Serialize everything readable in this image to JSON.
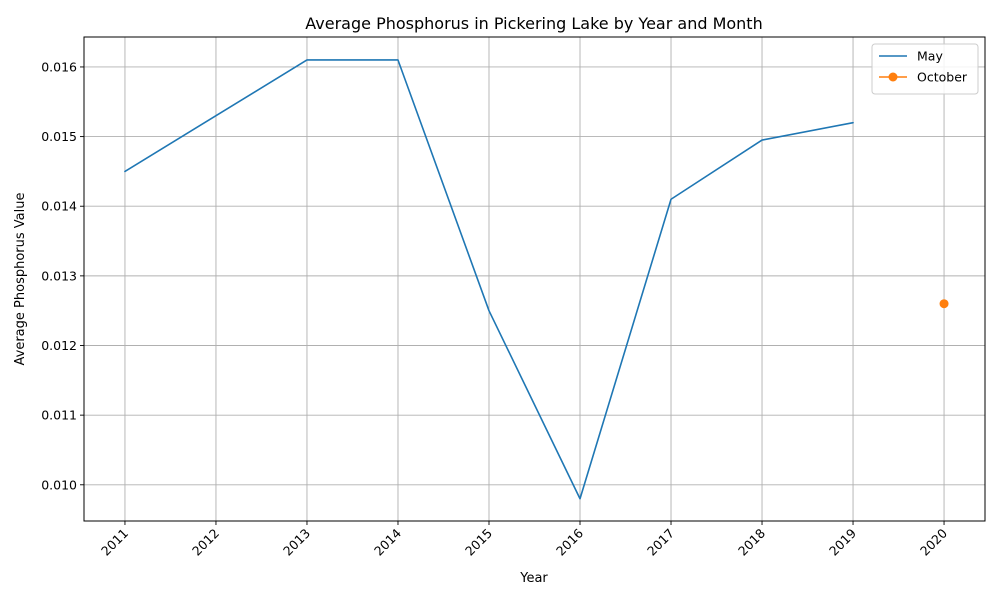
{
  "chart_data": {
    "type": "line",
    "title": "Average Phosphorus in Pickering Lake by Year and Month",
    "xlabel": "Year",
    "ylabel": "Average Phosphorus Value",
    "x_ticks": [
      "2011",
      "2012",
      "2013",
      "2014",
      "2015",
      "2016",
      "2017",
      "2018",
      "2019",
      "2020"
    ],
    "y_ticks": [
      "0.010",
      "0.011",
      "0.012",
      "0.013",
      "0.014",
      "0.015",
      "0.016"
    ],
    "xlim": [
      2010.55,
      2020.45
    ],
    "ylim": [
      0.00948,
      0.01643
    ],
    "grid": true,
    "legend_position": "top-right",
    "series": [
      {
        "name": "May",
        "color": "#1f77b4",
        "marker": "none",
        "x": [
          2011,
          2012,
          2013,
          2014,
          2015,
          2016,
          2017,
          2018,
          2019
        ],
        "y": [
          0.0145,
          0.0153,
          0.0161,
          0.0161,
          0.0125,
          0.0098,
          0.0141,
          0.01495,
          0.0152
        ]
      },
      {
        "name": "October",
        "color": "#ff7f0e",
        "marker": "circle",
        "x": [
          2020
        ],
        "y": [
          0.0126
        ]
      }
    ]
  }
}
